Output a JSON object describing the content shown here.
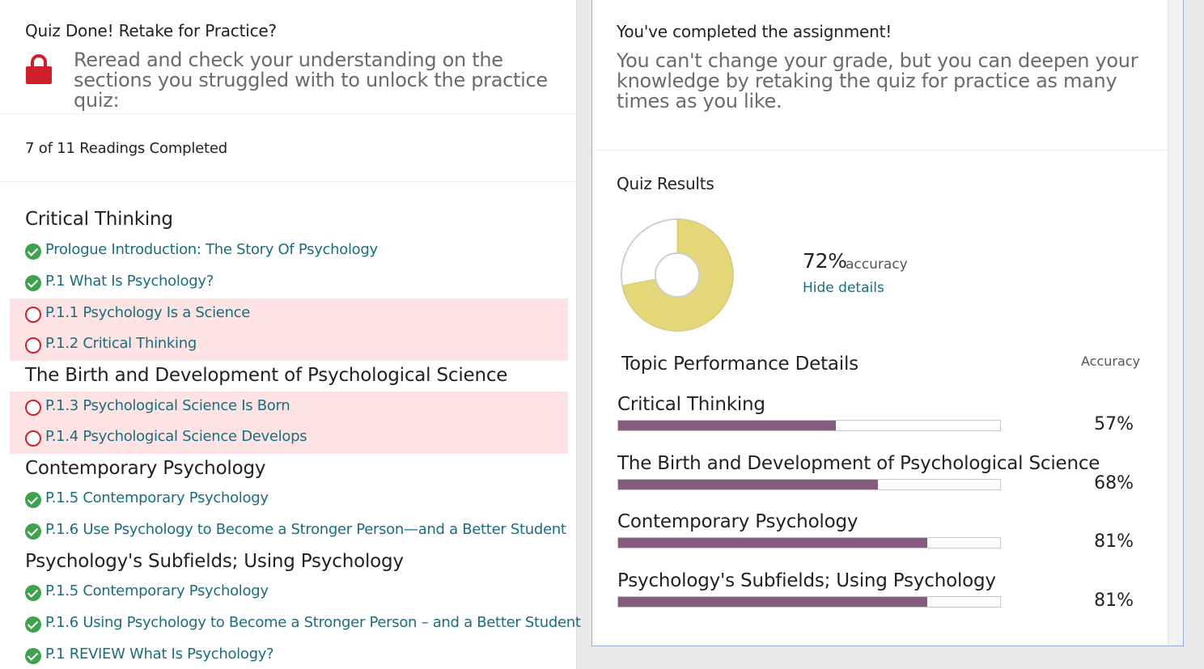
{
  "left": {
    "title": "Quiz Done! Retake for Practice?",
    "reread": "Reread and check your understanding on the sections you struggled with to unlock the practice quiz:",
    "readings_completed": "7 of 11 Readings Completed",
    "sections": [
      {
        "heading": "Critical Thinking",
        "items": [
          {
            "label": "Prologue Introduction: The Story Of Psychology",
            "status": "complete"
          },
          {
            "label": "P.1 What Is Psychology?",
            "status": "complete"
          },
          {
            "label": "P.1.1 Psychology Is a Science",
            "status": "incomplete"
          },
          {
            "label": "P.1.2 Critical Thinking",
            "status": "incomplete"
          }
        ]
      },
      {
        "heading": "The Birth and Development of Psychological Science",
        "items": [
          {
            "label": "P.1.3 Psychological Science Is Born",
            "status": "incomplete"
          },
          {
            "label": "P.1.4 Psychological Science Develops",
            "status": "incomplete"
          }
        ]
      },
      {
        "heading": "Contemporary Psychology",
        "items": [
          {
            "label": "P.1.5 Contemporary Psychology",
            "status": "complete"
          },
          {
            "label": "P.1.6 Use Psychology to Become a Stronger Person—and a Better Student",
            "status": "complete"
          }
        ]
      },
      {
        "heading": "Psychology's Subfields; Using Psychology",
        "items": [
          {
            "label": "P.1.5 Contemporary Psychology",
            "status": "complete"
          },
          {
            "label": "P.1.6 Using Psychology to Become a Stronger Person – and a Better Student",
            "status": "complete"
          },
          {
            "label": "P.1 REVIEW What Is Psychology?",
            "status": "complete"
          }
        ]
      }
    ]
  },
  "right": {
    "title": "You've completed the assignment!",
    "text": "You can't change your grade, but you can deepen your knowledge by retaking the quiz for practice as many times as you like.",
    "quiz_results": "Quiz Results",
    "accuracy_value": "72%",
    "accuracy_word": "accuracy",
    "accuracy_fraction": 0.72,
    "hide_details": "Hide details",
    "topic_header": "Topic Performance Details",
    "accuracy_header": "Accuracy",
    "topics": [
      {
        "name": "Critical Thinking",
        "pct": "57%",
        "fraction": 0.57
      },
      {
        "name": "The Birth and Development of Psychological Science",
        "pct": "68%",
        "fraction": 0.68
      },
      {
        "name": "Contemporary Psychology",
        "pct": "81%",
        "fraction": 0.81
      },
      {
        "name": "Psychology's Subfields; Using Psychology",
        "pct": "81%",
        "fraction": 0.81
      }
    ]
  },
  "colors": {
    "link": "#1a6e7e",
    "complete": "#3fa34d",
    "incomplete": "#d0202a",
    "struggled_bg": "#fde3e3",
    "donut_fill": "#e3d77a",
    "bar_fill": "#855c7d"
  },
  "icons": {
    "lock": "lock-icon",
    "complete": "check-circle-icon",
    "incomplete": "empty-circle-icon"
  }
}
